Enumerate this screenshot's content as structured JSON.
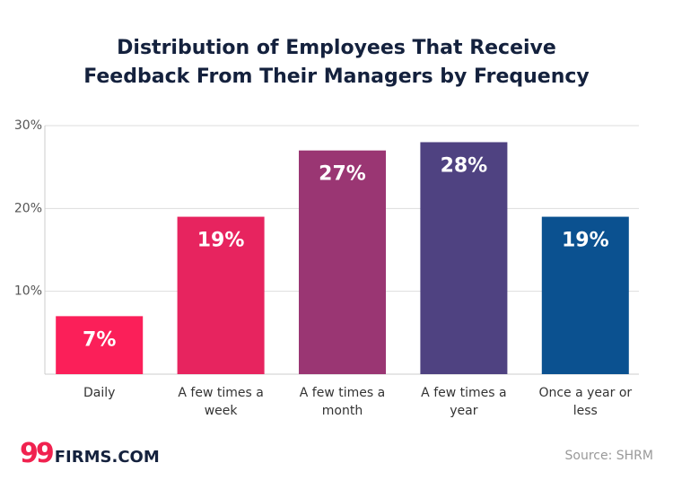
{
  "chart_data": {
    "type": "bar",
    "title": "Distribution of Employees That Receive Feedback From Their Managers by Frequency",
    "categories": [
      "Daily",
      "A few times a week",
      "A few times a month",
      "A few times a year",
      "Once a year or less"
    ],
    "values": [
      7,
      19,
      27,
      28,
      19
    ],
    "value_labels": [
      "7%",
      "19%",
      "27%",
      "28%",
      "19%"
    ],
    "colors": [
      "#fb1f59",
      "#e7245f",
      "#9a3673",
      "#4f4281",
      "#0b5190"
    ],
    "ylim": [
      0,
      30
    ],
    "yticks": [
      {
        "value": 10,
        "label": "10%"
      },
      {
        "value": 20,
        "label": "20%"
      },
      {
        "value": 30,
        "label": "30%"
      }
    ],
    "grid": true
  },
  "logo": {
    "mark": "99",
    "text": "FIRMS.COM"
  },
  "source": "Source: SHRM"
}
